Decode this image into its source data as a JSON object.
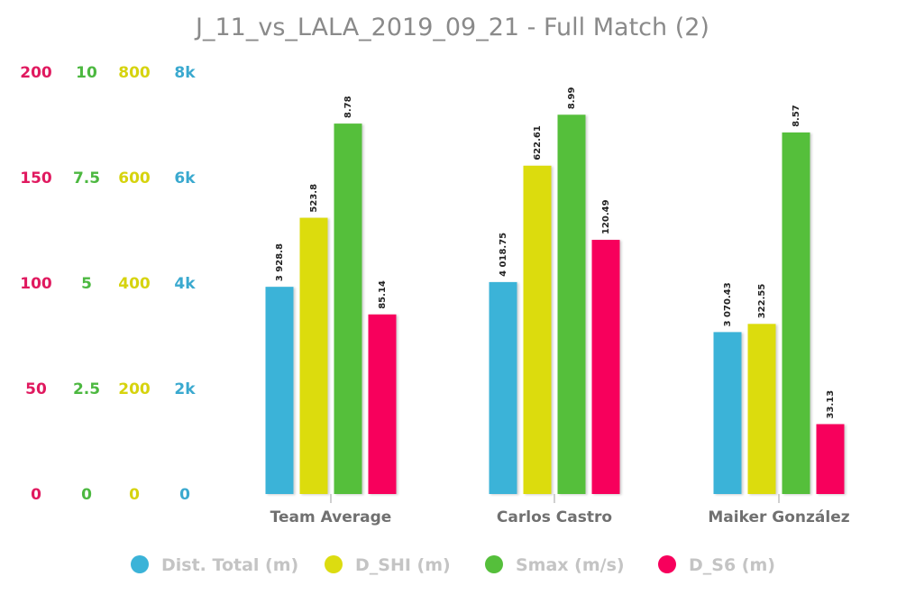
{
  "chart_data": {
    "type": "bar",
    "title": "J_11_vs_LALA_2019_09_21 - Full Match (2)",
    "categories": [
      "Team Average",
      "Carlos Castro",
      "Maiker González"
    ],
    "series": [
      {
        "name": "Dist. Total (m)",
        "color": "#3bb3d8",
        "axis": 3,
        "values": [
          3928.8,
          4018.75,
          3070.43
        ],
        "labels": [
          "3 928.8",
          "4 018.75",
          "3 070.43"
        ]
      },
      {
        "name": "D_SHI (m)",
        "color": "#dcdc10",
        "axis": 2,
        "values": [
          523.8,
          622.61,
          322.55
        ],
        "labels": [
          "523.8",
          "622.61",
          "322.55"
        ]
      },
      {
        "name": "Smax (m/s)",
        "color": "#55bf3b",
        "axis": 1,
        "values": [
          8.78,
          8.99,
          8.57
        ],
        "labels": [
          "8.78",
          "8.99",
          "8.57"
        ]
      },
      {
        "name": "D_S6 (m)",
        "color": "#f7005c",
        "axis": 0,
        "values": [
          85.14,
          120.49,
          33.13
        ],
        "labels": [
          "85.14",
          "120.49",
          "33.13"
        ]
      }
    ],
    "y_axes": [
      {
        "color": "#e0195f",
        "min": 0,
        "max": 200,
        "ticks": [
          "0",
          "50",
          "100",
          "150",
          "200"
        ]
      },
      {
        "color": "#4cb840",
        "min": 0,
        "max": 10,
        "ticks": [
          "0",
          "2.5",
          "5",
          "7.5",
          "10"
        ]
      },
      {
        "color": "#d6d30e",
        "min": 0,
        "max": 800,
        "ticks": [
          "0",
          "200",
          "400",
          "600",
          "800"
        ]
      },
      {
        "color": "#3aa9cf",
        "min": 0,
        "max": 8000,
        "ticks": [
          "0",
          "2k",
          "4k",
          "6k",
          "8k"
        ]
      }
    ],
    "legend_position": "bottom",
    "grid": false
  }
}
